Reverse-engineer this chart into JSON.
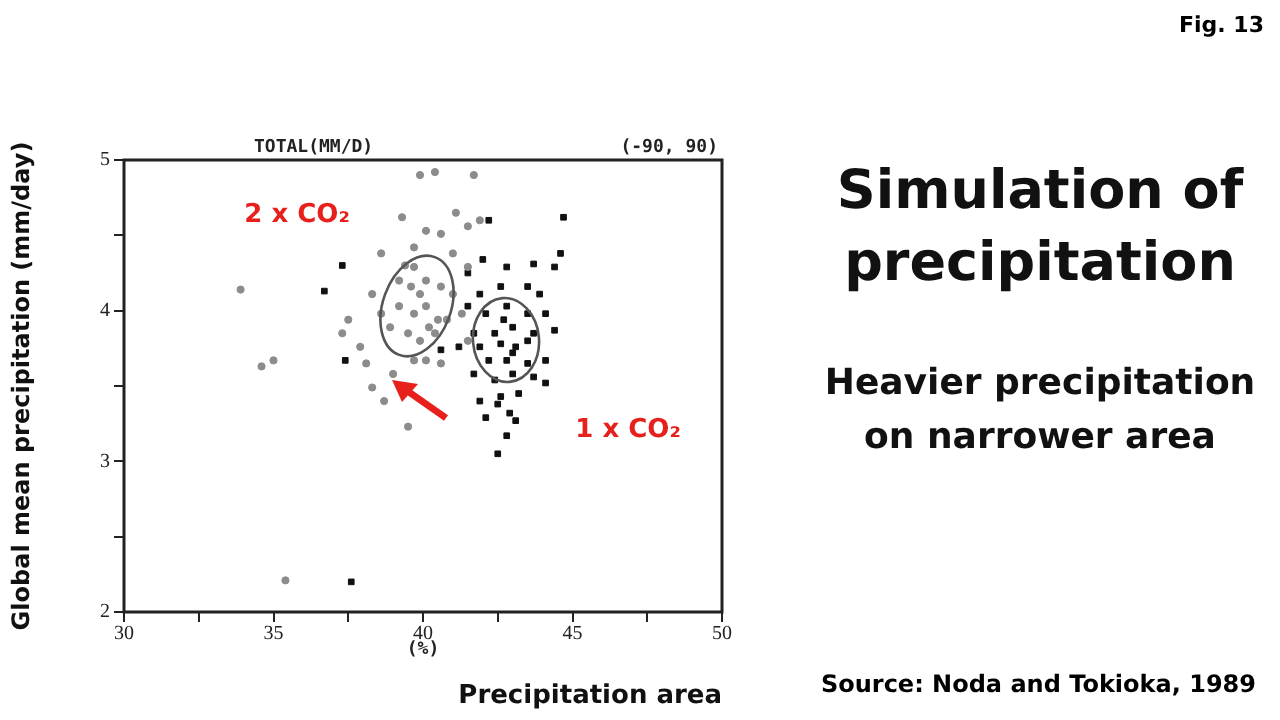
{
  "chart_data": {
    "type": "scatter",
    "title": "Simulation of precipitation",
    "subtitle": "Heavier precipitation on narrower area",
    "xlabel": "Precipitation area",
    "ylabel": "Global mean precipitation (mm/day)",
    "annotations": [
      "TOTAL(MM/D)",
      "(-90, 90)",
      "(%)",
      "Source: Noda and Tokioka, 1989",
      "Fig. 13"
    ],
    "xlim": [
      30,
      50
    ],
    "ylim": [
      2,
      5
    ],
    "xticks": [
      30,
      {
        "value": 32.5,
        "label": null
      },
      35,
      {
        "value": 37.5,
        "label": null
      },
      40,
      {
        "value": 42.5,
        "label": null
      },
      45,
      {
        "value": 47.5,
        "label": null
      },
      50
    ],
    "yticks": [
      2,
      {
        "value": 2.5,
        "label": null
      },
      3,
      {
        "value": 3.5,
        "label": null
      },
      4,
      {
        "value": 4.5,
        "label": null
      },
      5
    ],
    "legend": false,
    "grid": false,
    "series": [
      {
        "name": "2 x CO₂",
        "color": "#8c8c8c",
        "marker": "circle",
        "x": [
          39.9,
          40.4,
          41.7,
          33.9,
          34.6,
          35.0,
          35.4,
          39.3,
          40.1,
          40.6,
          41.1,
          41.5,
          41.9,
          38.3,
          38.6,
          37.5,
          37.3,
          37.9,
          38.1,
          38.3,
          38.7,
          39.5,
          39.0,
          39.2,
          39.7,
          40.1,
          40.6,
          39.2,
          39.7,
          40.1,
          40.5,
          39.5,
          39.9,
          40.4,
          38.9,
          40.8,
          41.0,
          41.3,
          41.5,
          40.1,
          39.7,
          40.6,
          38.6,
          41.0,
          39.7,
          41.5,
          39.4,
          39.9,
          39.6,
          40.2
        ],
        "values": [
          4.9,
          4.92,
          4.9,
          4.14,
          3.63,
          3.67,
          2.21,
          4.62,
          4.53,
          4.51,
          4.65,
          4.56,
          4.6,
          4.11,
          3.98,
          3.94,
          3.85,
          3.76,
          3.65,
          3.49,
          3.4,
          3.23,
          3.58,
          4.2,
          4.29,
          4.2,
          4.16,
          4.03,
          3.98,
          4.03,
          3.94,
          3.85,
          3.8,
          3.85,
          3.89,
          3.94,
          4.11,
          3.98,
          3.8,
          3.67,
          3.67,
          3.65,
          4.38,
          4.38,
          4.42,
          4.29,
          4.3,
          4.11,
          4.16,
          3.89
        ]
      },
      {
        "name": "1 x CO₂",
        "color": "#111111",
        "marker": "square",
        "x": [
          42.2,
          44.7,
          44.6,
          37.3,
          36.7,
          37.4,
          37.6,
          42.5,
          42.8,
          42.0,
          42.8,
          43.7,
          44.4,
          41.5,
          41.9,
          42.6,
          43.5,
          43.9,
          41.5,
          42.1,
          42.8,
          43.5,
          44.1,
          41.7,
          42.4,
          43.0,
          43.7,
          44.4,
          41.9,
          42.6,
          43.1,
          43.5,
          42.2,
          42.8,
          43.5,
          44.1,
          41.7,
          42.4,
          43.0,
          43.7,
          44.1,
          41.9,
          42.6,
          43.2,
          42.1,
          42.9,
          43.1,
          42.5,
          40.6,
          41.2,
          42.7,
          43.0
        ],
        "values": [
          4.6,
          4.62,
          4.38,
          4.3,
          4.13,
          3.67,
          2.2,
          3.05,
          3.17,
          4.34,
          4.29,
          4.31,
          4.29,
          4.25,
          4.11,
          4.16,
          4.16,
          4.11,
          4.03,
          3.98,
          4.03,
          3.98,
          3.98,
          3.85,
          3.85,
          3.89,
          3.85,
          3.87,
          3.76,
          3.78,
          3.76,
          3.8,
          3.67,
          3.67,
          3.65,
          3.67,
          3.58,
          3.54,
          3.58,
          3.56,
          3.52,
          3.4,
          3.43,
          3.45,
          3.29,
          3.32,
          3.27,
          3.38,
          3.74,
          3.76,
          3.94,
          3.72
        ]
      }
    ]
  }
}
